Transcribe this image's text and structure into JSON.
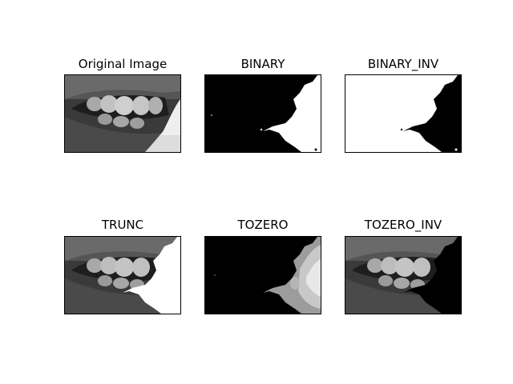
{
  "panels": [
    {
      "title": "Original Image",
      "variant": "original"
    },
    {
      "title": "BINARY",
      "variant": "binary"
    },
    {
      "title": "BINARY_INV",
      "variant": "binary-inv"
    },
    {
      "title": "TRUNC",
      "variant": "trunc"
    },
    {
      "title": "TOZERO",
      "variant": "tozero"
    },
    {
      "title": "TOZERO_INV",
      "variant": "tozero-inv"
    }
  ],
  "colors": {
    "black": "#000000",
    "white": "#ffffff",
    "skin_dark": "#2a2a2a",
    "skin_mid": "#5a5a5a",
    "teeth": "#b8b8b8",
    "bright": "#f2f2f2"
  }
}
